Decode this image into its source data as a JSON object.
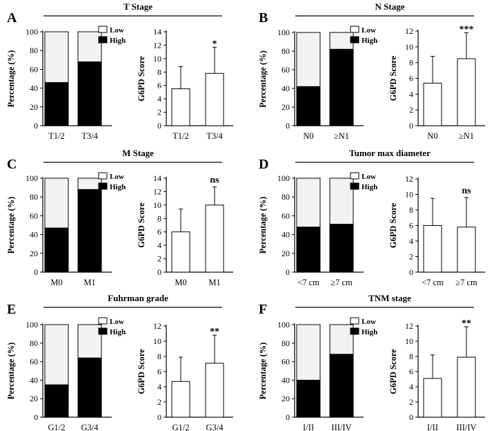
{
  "chart_data": [
    {
      "label": "A",
      "title": "T Stage",
      "categories": [
        "T1/2",
        "T3/4"
      ],
      "stacked": {
        "type": "bar",
        "ylabel": "Percentage (%)",
        "ylim": [
          0,
          100
        ],
        "yticks": [
          0,
          20,
          40,
          60,
          80,
          100
        ],
        "series": [
          {
            "name": "High",
            "values": [
              46,
              68
            ],
            "color": "#000000"
          },
          {
            "name": "Low",
            "values": [
              54,
              32
            ],
            "color": "#f2f2f2"
          }
        ]
      },
      "score": {
        "type": "bar",
        "ylabel": "G6PD Score",
        "ylim": [
          0,
          14
        ],
        "yticks": [
          0,
          2,
          4,
          6,
          8,
          10,
          12,
          14
        ],
        "values": [
          5.5,
          7.8
        ],
        "errors": [
          3.3,
          3.9
        ],
        "significance": "*"
      }
    },
    {
      "label": "B",
      "title": "N Stage",
      "categories": [
        "N0",
        "≥N1"
      ],
      "stacked": {
        "type": "bar",
        "ylabel": "Percentage (%)",
        "ylim": [
          0,
          100
        ],
        "yticks": [
          0,
          20,
          40,
          60,
          80,
          100
        ],
        "series": [
          {
            "name": "High",
            "values": [
              42,
              82
            ],
            "color": "#000000"
          },
          {
            "name": "Low",
            "values": [
              58,
              18
            ],
            "color": "#f2f2f2"
          }
        ]
      },
      "score": {
        "type": "bar",
        "ylabel": "G6PD Score",
        "ylim": [
          0,
          12
        ],
        "yticks": [
          0,
          2,
          4,
          6,
          8,
          10,
          12
        ],
        "values": [
          5.4,
          8.5
        ],
        "errors": [
          3.4,
          3.3
        ],
        "significance": "***"
      }
    },
    {
      "label": "C",
      "title": "M Stage",
      "categories": [
        "M0",
        "M1"
      ],
      "stacked": {
        "type": "bar",
        "ylabel": "Percentage (%)",
        "ylim": [
          0,
          100
        ],
        "yticks": [
          0,
          20,
          40,
          60,
          80,
          100
        ],
        "series": [
          {
            "name": "High",
            "values": [
              47,
              88
            ],
            "color": "#000000"
          },
          {
            "name": "Low",
            "values": [
              53,
              12
            ],
            "color": "#f2f2f2"
          }
        ]
      },
      "score": {
        "type": "bar",
        "ylabel": "G6PD Score",
        "ylim": [
          0,
          14
        ],
        "yticks": [
          0,
          2,
          4,
          6,
          8,
          10,
          12,
          14
        ],
        "values": [
          6.0,
          10.0
        ],
        "errors": [
          3.4,
          2.7
        ],
        "significance": "ns"
      }
    },
    {
      "label": "D",
      "title": "Tumor max diameter",
      "categories": [
        "<7 cm",
        "≥7 cm"
      ],
      "stacked": {
        "type": "bar",
        "ylabel": "Percentage (%)",
        "ylim": [
          0,
          100
        ],
        "yticks": [
          0,
          20,
          40,
          60,
          80,
          100
        ],
        "series": [
          {
            "name": "High",
            "values": [
              48,
              51
            ],
            "color": "#000000"
          },
          {
            "name": "Low",
            "values": [
              52,
              49
            ],
            "color": "#f2f2f2"
          }
        ]
      },
      "score": {
        "type": "bar",
        "ylabel": "G6PD Score",
        "ylim": [
          0,
          12
        ],
        "yticks": [
          0,
          2,
          4,
          6,
          8,
          10,
          12
        ],
        "values": [
          6.0,
          5.8
        ],
        "errors": [
          3.5,
          3.8
        ],
        "significance": "ns"
      }
    },
    {
      "label": "E",
      "title": "Fuhrman grade",
      "categories": [
        "G1/2",
        "G3/4"
      ],
      "stacked": {
        "type": "bar",
        "ylabel": "Percentage (%)",
        "ylim": [
          0,
          100
        ],
        "yticks": [
          0,
          20,
          40,
          60,
          80,
          100
        ],
        "series": [
          {
            "name": "High",
            "values": [
              35,
              64
            ],
            "color": "#000000"
          },
          {
            "name": "Low",
            "values": [
              65,
              36
            ],
            "color": "#f2f2f2"
          }
        ]
      },
      "score": {
        "type": "bar",
        "ylabel": "G6PD Score",
        "ylim": [
          0,
          12
        ],
        "yticks": [
          0,
          2,
          4,
          6,
          8,
          10,
          12
        ],
        "values": [
          4.7,
          7.1
        ],
        "errors": [
          3.2,
          3.7
        ],
        "significance": "**"
      }
    },
    {
      "label": "F",
      "title": "TNM stage",
      "categories": [
        "I/II",
        "III/IV"
      ],
      "stacked": {
        "type": "bar",
        "ylabel": "Percentage (%)",
        "ylim": [
          0,
          100
        ],
        "yticks": [
          0,
          20,
          40,
          60,
          80,
          100
        ],
        "series": [
          {
            "name": "High",
            "values": [
              40,
              68
            ],
            "color": "#000000"
          },
          {
            "name": "Low",
            "values": [
              60,
              32
            ],
            "color": "#f2f2f2"
          }
        ]
      },
      "score": {
        "type": "bar",
        "ylabel": "G6PD Score",
        "ylim": [
          0,
          12
        ],
        "yticks": [
          0,
          2,
          4,
          6,
          8,
          10,
          12
        ],
        "values": [
          5.1,
          7.9
        ],
        "errors": [
          3.1,
          4.0
        ],
        "significance": "**"
      }
    }
  ]
}
